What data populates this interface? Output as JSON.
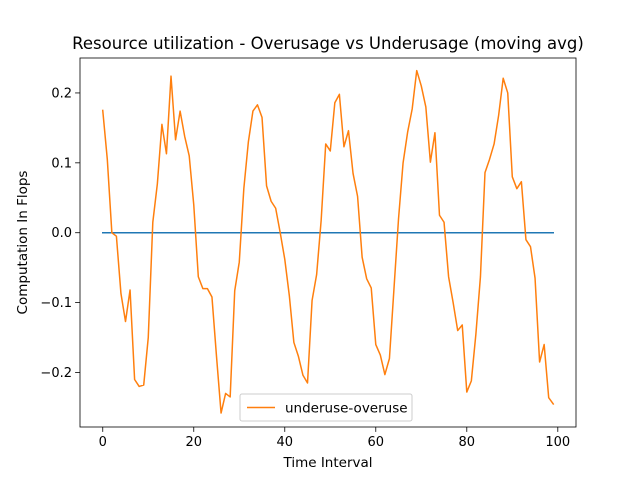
{
  "chart_data": {
    "type": "line",
    "title": "Resource utilization - Overusage vs Underusage (moving avg)",
    "xlabel": "Time Interval",
    "ylabel": "Computation In Flops",
    "xlim": [
      -5,
      104
    ],
    "ylim": [
      -0.278,
      0.25
    ],
    "xticks": [
      0,
      20,
      40,
      60,
      80,
      100
    ],
    "yticks": [
      -0.2,
      -0.1,
      0.0,
      0.1,
      0.2
    ],
    "xtick_labels": [
      "0",
      "20",
      "40",
      "60",
      "80",
      "100"
    ],
    "ytick_labels": [
      "−0.2",
      "−0.1",
      "0.0",
      "0.1",
      "0.2"
    ],
    "grid": false,
    "legend_position": "lower center",
    "series": [
      {
        "name": "",
        "color": "#1f77b4",
        "x": [
          0,
          99
        ],
        "y": [
          0.0,
          0.0
        ]
      },
      {
        "name": "underuse-overuse",
        "color": "#ff7f0e",
        "x": [
          0,
          1,
          2,
          3,
          4,
          5,
          6,
          7,
          8,
          9,
          10,
          11,
          12,
          13,
          14,
          15,
          16,
          17,
          18,
          19,
          20,
          21,
          22,
          23,
          24,
          25,
          26,
          27,
          28,
          29,
          30,
          31,
          32,
          33,
          34,
          35,
          36,
          37,
          38,
          39,
          40,
          41,
          42,
          43,
          44,
          45,
          46,
          47,
          48,
          49,
          50,
          51,
          52,
          53,
          54,
          55,
          56,
          57,
          58,
          59,
          60,
          61,
          62,
          63,
          64,
          65,
          66,
          67,
          68,
          69,
          70,
          71,
          72,
          73,
          74,
          75,
          76,
          77,
          78,
          79,
          80,
          81,
          82,
          83,
          84,
          85,
          86,
          87,
          88,
          89,
          90,
          91,
          92,
          93,
          94,
          95,
          96,
          97,
          98,
          99
        ],
        "y": [
          0.175,
          0.105,
          0.0,
          -0.005,
          -0.087,
          -0.127,
          -0.082,
          -0.21,
          -0.22,
          -0.218,
          -0.15,
          0.015,
          0.07,
          0.155,
          0.113,
          0.224,
          0.133,
          0.174,
          0.138,
          0.11,
          0.04,
          -0.063,
          -0.08,
          -0.08,
          -0.092,
          -0.177,
          -0.258,
          -0.23,
          -0.235,
          -0.083,
          -0.042,
          0.063,
          0.13,
          0.174,
          0.183,
          0.165,
          0.067,
          0.045,
          0.035,
          0.0,
          -0.038,
          -0.09,
          -0.157,
          -0.177,
          -0.204,
          -0.215,
          -0.097,
          -0.06,
          0.018,
          0.127,
          0.117,
          0.186,
          0.198,
          0.123,
          0.146,
          0.085,
          0.052,
          -0.035,
          -0.066,
          -0.079,
          -0.16,
          -0.175,
          -0.203,
          -0.18,
          -0.08,
          0.02,
          0.1,
          0.144,
          0.177,
          0.232,
          0.21,
          0.18,
          0.101,
          0.143,
          0.025,
          0.015,
          -0.063,
          -0.1,
          -0.14,
          -0.132,
          -0.228,
          -0.212,
          -0.145,
          -0.063,
          0.086,
          0.105,
          0.127,
          0.168,
          0.221,
          0.2,
          0.08,
          0.063,
          0.073,
          -0.01,
          -0.02,
          -0.065,
          -0.185,
          -0.16,
          -0.236,
          -0.245
        ]
      }
    ]
  }
}
